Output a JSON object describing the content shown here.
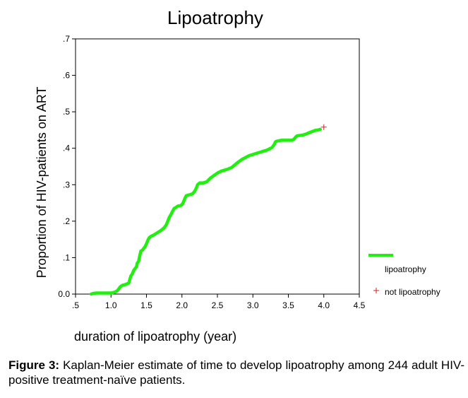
{
  "chart_data": {
    "type": "line",
    "title": "Lipoatrophy",
    "xlabel": "duration of lipoatrophy (year)",
    "ylabel": "Proportion of HIV-patients on ART",
    "xlim": [
      0.5,
      4.5
    ],
    "ylim": [
      0.0,
      0.7
    ],
    "xticks": [
      ".5",
      "1.0",
      "1.5",
      "2.0",
      "2.5",
      "3.0",
      "3.5",
      "4.0",
      "4.5"
    ],
    "xtick_values": [
      0.5,
      1.0,
      1.5,
      2.0,
      2.5,
      3.0,
      3.5,
      4.0,
      4.5
    ],
    "yticks": [
      "0.0",
      ".1",
      ".2",
      ".3",
      ".4",
      ".5",
      ".6",
      ".7"
    ],
    "ytick_values": [
      0.0,
      0.1,
      0.2,
      0.3,
      0.4,
      0.5,
      0.6,
      0.7
    ],
    "grid": false,
    "series": [
      {
        "name": "lipoatrophy",
        "color": "#22ee11",
        "x": [
          0.72,
          0.75,
          0.8,
          0.85,
          0.9,
          0.95,
          1.0,
          1.05,
          1.08,
          1.1,
          1.13,
          1.16,
          1.2,
          1.25,
          1.28,
          1.3,
          1.32,
          1.34,
          1.36,
          1.37,
          1.39,
          1.4,
          1.42,
          1.44,
          1.46,
          1.48,
          1.5,
          1.52,
          1.54,
          1.56,
          1.58,
          1.6,
          1.65,
          1.7,
          1.75,
          1.78,
          1.8,
          1.82,
          1.85,
          1.87,
          1.89,
          1.91,
          1.93,
          1.95,
          1.97,
          2.0,
          2.02,
          2.04,
          2.06,
          2.1,
          2.15,
          2.18,
          2.2,
          2.22,
          2.25,
          2.3,
          2.35,
          2.38,
          2.4,
          2.45,
          2.5,
          2.55,
          2.6,
          2.65,
          2.7,
          2.75,
          2.8,
          2.85,
          2.9,
          2.95,
          3.0,
          3.05,
          3.1,
          3.15,
          3.2,
          3.25,
          3.27,
          3.3,
          3.32,
          3.35,
          3.4,
          3.5,
          3.55,
          3.58,
          3.6,
          3.62,
          3.65,
          3.7,
          3.75,
          3.8,
          3.85,
          3.88,
          3.92,
          3.95
        ],
        "y": [
          0.0,
          0.002,
          0.003,
          0.003,
          0.003,
          0.003,
          0.003,
          0.005,
          0.008,
          0.012,
          0.02,
          0.024,
          0.026,
          0.03,
          0.05,
          0.055,
          0.065,
          0.07,
          0.075,
          0.085,
          0.09,
          0.1,
          0.118,
          0.12,
          0.125,
          0.13,
          0.138,
          0.148,
          0.155,
          0.158,
          0.16,
          0.162,
          0.168,
          0.174,
          0.182,
          0.19,
          0.2,
          0.21,
          0.22,
          0.228,
          0.235,
          0.237,
          0.24,
          0.242,
          0.242,
          0.245,
          0.252,
          0.262,
          0.27,
          0.272,
          0.275,
          0.282,
          0.29,
          0.3,
          0.305,
          0.305,
          0.308,
          0.314,
          0.318,
          0.325,
          0.332,
          0.337,
          0.34,
          0.343,
          0.347,
          0.355,
          0.363,
          0.37,
          0.375,
          0.38,
          0.383,
          0.386,
          0.389,
          0.392,
          0.395,
          0.4,
          0.402,
          0.41,
          0.418,
          0.42,
          0.422,
          0.422,
          0.422,
          0.425,
          0.43,
          0.434,
          0.435,
          0.436,
          0.439,
          0.443,
          0.447,
          0.449,
          0.45,
          0.452
        ]
      }
    ],
    "censored": {
      "name": "not lipoatrophy",
      "marker": "+",
      "color": "#cc2222",
      "x": [
        4.0
      ],
      "y": [
        0.458
      ]
    },
    "legend": {
      "position": "right",
      "entries": [
        {
          "label": "lipoatrophy",
          "type": "line",
          "color": "#22ee11"
        },
        {
          "label": "not lipoatrophy",
          "type": "marker",
          "marker": "+",
          "color": "#cc2222"
        }
      ]
    }
  },
  "caption": {
    "label": "Figure 3:",
    "text": " Kaplan-Meier estimate of time to develop lipoatrophy among 244 adult HIV-positive treatment-naïve patients."
  }
}
